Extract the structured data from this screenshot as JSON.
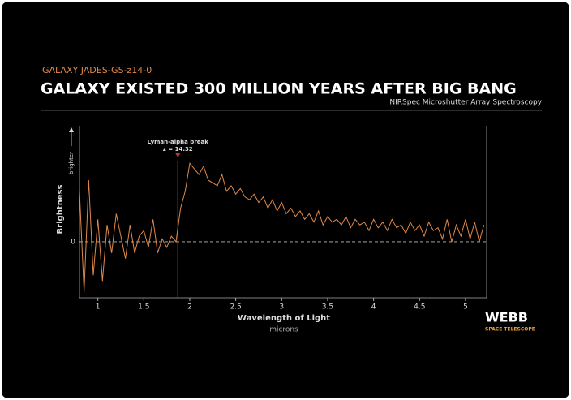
{
  "chart_data": {
    "type": "line",
    "kicker": "GALAXY JADES-GS-z14-0",
    "title": "GALAXY EXISTED 300 MILLION YEARS AFTER BIG BANG",
    "subtitle": "NIRSpec Microshutter Array Spectroscopy",
    "y_label": "Brightness",
    "y_arrow_label": "brighter",
    "x_label": "Wavelength of Light",
    "x_unit": "microns",
    "annotation": {
      "title": "Lyman-alpha break",
      "text": "z = 14.32",
      "x": 1.87,
      "color": "#c0392b"
    },
    "logo": {
      "title": "WEBB",
      "text": "SPACE TELESCOPE"
    },
    "x": [
      0.8,
      0.85,
      0.9,
      0.95,
      1.0,
      1.05,
      1.1,
      1.15,
      1.2,
      1.25,
      1.3,
      1.35,
      1.4,
      1.45,
      1.5,
      1.55,
      1.6,
      1.65,
      1.7,
      1.75,
      1.8,
      1.85,
      1.9,
      1.95,
      2.0,
      2.05,
      2.1,
      2.15,
      2.2,
      2.25,
      2.3,
      2.35,
      2.4,
      2.45,
      2.5,
      2.55,
      2.6,
      2.65,
      2.7,
      2.75,
      2.8,
      2.85,
      2.9,
      2.95,
      3.0,
      3.05,
      3.1,
      3.15,
      3.2,
      3.25,
      3.3,
      3.35,
      3.4,
      3.45,
      3.5,
      3.55,
      3.6,
      3.65,
      3.7,
      3.75,
      3.8,
      3.85,
      3.9,
      3.95,
      4.0,
      4.05,
      4.1,
      4.15,
      4.2,
      4.25,
      4.3,
      4.35,
      4.4,
      4.45,
      4.5,
      4.55,
      4.6,
      4.65,
      4.7,
      4.75,
      4.8,
      4.85,
      4.9,
      4.95,
      5.0,
      5.05,
      5.1,
      5.15,
      5.2
    ],
    "series": [
      {
        "color": "#e0894a",
        "values": [
          0.9,
          -0.9,
          1.1,
          -0.6,
          0.4,
          -0.7,
          0.3,
          -0.2,
          0.5,
          0.1,
          -0.3,
          0.3,
          -0.2,
          0.1,
          0.2,
          -0.1,
          0.4,
          -0.2,
          0.05,
          -0.1,
          0.1,
          0.0,
          0.6,
          0.9,
          1.4,
          1.3,
          1.2,
          1.35,
          1.1,
          1.05,
          1.0,
          1.2,
          0.9,
          1.0,
          0.85,
          0.95,
          0.8,
          0.75,
          0.85,
          0.7,
          0.8,
          0.6,
          0.75,
          0.55,
          0.7,
          0.5,
          0.6,
          0.45,
          0.55,
          0.4,
          0.5,
          0.35,
          0.55,
          0.3,
          0.45,
          0.35,
          0.4,
          0.3,
          0.45,
          0.25,
          0.4,
          0.3,
          0.35,
          0.2,
          0.4,
          0.25,
          0.35,
          0.2,
          0.4,
          0.25,
          0.3,
          0.15,
          0.35,
          0.2,
          0.3,
          0.1,
          0.35,
          0.2,
          0.25,
          0.05,
          0.4,
          0.0,
          0.3,
          0.1,
          0.4,
          0.05,
          0.35,
          0.0,
          0.3
        ]
      }
    ],
    "xlim": [
      0.8,
      5.23
    ],
    "ylim": [
      -1,
      2.07
    ],
    "xticks": [
      1,
      1.5,
      2,
      2.5,
      3,
      3.5,
      4,
      4.5,
      5
    ],
    "yticks": [
      0
    ]
  }
}
